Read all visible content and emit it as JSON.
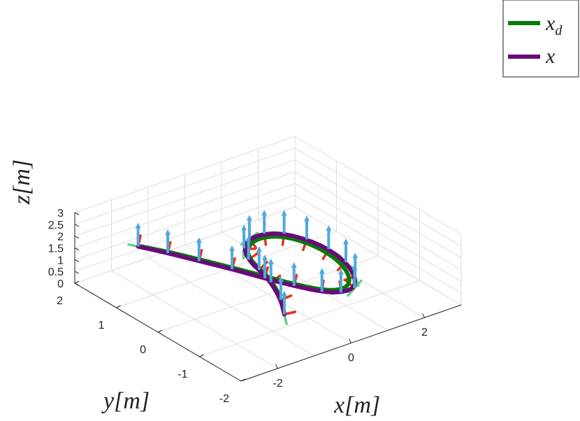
{
  "chart_data": {
    "type": "line3d",
    "xlabel": "x[m]",
    "ylabel": "y[m]",
    "zlabel": "z[m]",
    "xlim": [
      -3,
      3
    ],
    "ylim": [
      -2,
      2
    ],
    "zlim": [
      0,
      3
    ],
    "xticks": [
      "-2",
      "0",
      "2"
    ],
    "yticks": [
      "-2",
      "-1",
      "0",
      "1",
      "2"
    ],
    "zticks": [
      "0",
      "0.5",
      "1",
      "1.5",
      "2",
      "2.5",
      "3"
    ],
    "grid": true,
    "legend_position": "outside-top-right",
    "colors": {
      "desired": "#0a7a0a",
      "actual": "#6a0a7a",
      "frame_x": "#e8321e",
      "frame_y": "#5ed18a",
      "frame_z": "#4fa9dc",
      "grid": "#dddddd",
      "axis": "#222222"
    },
    "series": [
      {
        "name": "x_d",
        "legend": {
          "base": "x",
          "sub": "d"
        },
        "role": "desired",
        "points": [
          [
            -1.7,
            1.55,
            1.33
          ],
          [
            -1.3,
            1.2,
            1.23
          ],
          [
            -0.9,
            0.8,
            1.1
          ],
          [
            -0.5,
            0.35,
            1.0
          ],
          [
            -0.15,
            -0.1,
            0.92
          ],
          [
            0.15,
            -0.5,
            0.86
          ],
          [
            0.45,
            -0.85,
            0.83
          ],
          [
            0.7,
            -1.05,
            0.87
          ],
          [
            0.95,
            -1.1,
            0.97
          ],
          [
            1.15,
            -0.95,
            1.13
          ],
          [
            1.25,
            -0.65,
            1.32
          ],
          [
            1.2,
            -0.3,
            1.5
          ],
          [
            1.02,
            0.02,
            1.65
          ],
          [
            0.75,
            0.28,
            1.75
          ],
          [
            0.42,
            0.42,
            1.78
          ],
          [
            0.08,
            0.45,
            1.72
          ],
          [
            -0.15,
            0.38,
            1.55
          ],
          [
            -0.22,
            0.22,
            1.32
          ],
          [
            -0.18,
            0.02,
            1.12
          ],
          [
            -0.22,
            -0.28,
            0.97
          ],
          [
            -0.45,
            -0.7,
            0.84
          ],
          [
            -0.75,
            -1.05,
            0.72
          ]
        ]
      },
      {
        "name": "x",
        "legend": {
          "base": "x",
          "sub": ""
        },
        "role": "actual",
        "points": [
          [
            -1.75,
            1.58,
            1.32
          ],
          [
            -1.35,
            1.22,
            1.2
          ],
          [
            -0.95,
            0.82,
            1.06
          ],
          [
            -0.55,
            0.38,
            0.96
          ],
          [
            -0.2,
            -0.1,
            0.88
          ],
          [
            0.12,
            -0.52,
            0.82
          ],
          [
            0.45,
            -0.9,
            0.79
          ],
          [
            0.72,
            -1.12,
            0.84
          ],
          [
            1.0,
            -1.2,
            0.96
          ],
          [
            1.22,
            -1.02,
            1.15
          ],
          [
            1.33,
            -0.7,
            1.36
          ],
          [
            1.28,
            -0.33,
            1.56
          ],
          [
            1.08,
            0.02,
            1.72
          ],
          [
            0.78,
            0.3,
            1.83
          ],
          [
            0.42,
            0.46,
            1.86
          ],
          [
            0.06,
            0.5,
            1.8
          ],
          [
            -0.18,
            0.42,
            1.6
          ],
          [
            -0.26,
            0.24,
            1.35
          ],
          [
            -0.22,
            0.02,
            1.12
          ],
          [
            -0.26,
            -0.3,
            0.95
          ],
          [
            -0.5,
            -0.75,
            0.8
          ],
          [
            -0.78,
            -1.08,
            0.68
          ]
        ]
      }
    ],
    "frame_indices": [
      0,
      1,
      2,
      3,
      4,
      5,
      6,
      7,
      8,
      9,
      10,
      11,
      12,
      13,
      14,
      15,
      16,
      17,
      18,
      19,
      20,
      21
    ]
  }
}
